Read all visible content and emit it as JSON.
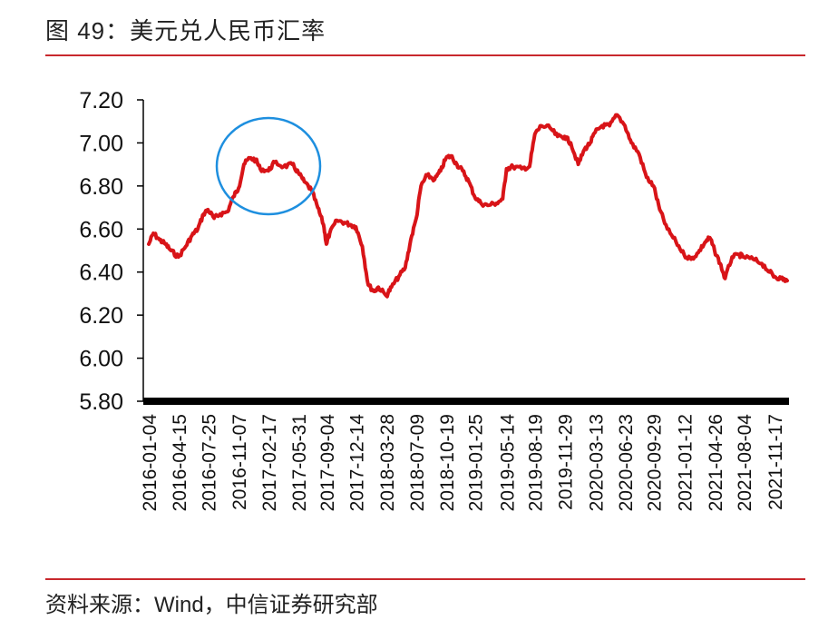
{
  "header": {
    "title": "图 49：美元兑人民币汇率"
  },
  "footer": {
    "source": "资料来源：Wind，中信证券研究部"
  },
  "colors": {
    "series": "#d81418",
    "rule": "#c8282d",
    "annotation": "#1e8fdf",
    "axis": "#000000"
  },
  "chart_data": {
    "type": "line",
    "title": "",
    "xlabel": "",
    "ylabel": "",
    "ylim": [
      5.8,
      7.2
    ],
    "yticks": [
      7.2,
      7.0,
      6.8,
      6.6,
      6.4,
      6.2,
      6.0,
      5.8
    ],
    "ytick_labels": [
      "7.20",
      "7.00",
      "6.80",
      "6.60",
      "6.40",
      "6.20",
      "6.00",
      "5.80"
    ],
    "xticks": [
      "2016-01-04",
      "2016-04-15",
      "2016-07-25",
      "2016-11-07",
      "2017-02-17",
      "2017-05-31",
      "2017-09-04",
      "2017-12-14",
      "2018-03-28",
      "2018-07-09",
      "2018-10-19",
      "2019-01-25",
      "2019-05-14",
      "2019-08-19",
      "2019-11-29",
      "2020-03-13",
      "2020-06-23",
      "2020-09-29",
      "2021-01-12",
      "2021-04-26",
      "2021-08-04",
      "2021-11-17"
    ],
    "grid": false,
    "legend": "none",
    "series": [
      {
        "points": [
          [
            "2016-01-04",
            6.53
          ],
          [
            "2016-01-20",
            6.58
          ],
          [
            "2016-02-10",
            6.55
          ],
          [
            "2016-03-01",
            6.53
          ],
          [
            "2016-03-20",
            6.5
          ],
          [
            "2016-04-15",
            6.47
          ],
          [
            "2016-05-10",
            6.52
          ],
          [
            "2016-05-31",
            6.57
          ],
          [
            "2016-06-20",
            6.6
          ],
          [
            "2016-07-10",
            6.67
          ],
          [
            "2016-07-25",
            6.69
          ],
          [
            "2016-08-15",
            6.65
          ],
          [
            "2016-09-05",
            6.67
          ],
          [
            "2016-09-30",
            6.68
          ],
          [
            "2016-10-20",
            6.75
          ],
          [
            "2016-11-07",
            6.79
          ],
          [
            "2016-11-25",
            6.9
          ],
          [
            "2016-12-15",
            6.93
          ],
          [
            "2017-01-05",
            6.92
          ],
          [
            "2017-01-20",
            6.88
          ],
          [
            "2017-02-17",
            6.87
          ],
          [
            "2017-03-10",
            6.91
          ],
          [
            "2017-04-10",
            6.89
          ],
          [
            "2017-05-10",
            6.9
          ],
          [
            "2017-05-31",
            6.86
          ],
          [
            "2017-06-20",
            6.82
          ],
          [
            "2017-07-15",
            6.78
          ],
          [
            "2017-08-05",
            6.7
          ],
          [
            "2017-08-25",
            6.62
          ],
          [
            "2017-09-04",
            6.53
          ],
          [
            "2017-09-15",
            6.58
          ],
          [
            "2017-10-10",
            6.64
          ],
          [
            "2017-11-05",
            6.63
          ],
          [
            "2017-11-25",
            6.62
          ],
          [
            "2017-12-14",
            6.61
          ],
          [
            "2018-01-05",
            6.52
          ],
          [
            "2018-01-25",
            6.34
          ],
          [
            "2018-02-15",
            6.31
          ],
          [
            "2018-03-01",
            6.33
          ],
          [
            "2018-03-28",
            6.29
          ],
          [
            "2018-04-15",
            6.33
          ],
          [
            "2018-05-10",
            6.38
          ],
          [
            "2018-06-01",
            6.42
          ],
          [
            "2018-06-20",
            6.55
          ],
          [
            "2018-07-09",
            6.65
          ],
          [
            "2018-07-25",
            6.8
          ],
          [
            "2018-08-15",
            6.85
          ],
          [
            "2018-09-10",
            6.83
          ],
          [
            "2018-09-30",
            6.87
          ],
          [
            "2018-10-19",
            6.93
          ],
          [
            "2018-11-05",
            6.94
          ],
          [
            "2018-11-25",
            6.9
          ],
          [
            "2018-12-15",
            6.87
          ],
          [
            "2019-01-05",
            6.82
          ],
          [
            "2019-01-25",
            6.75
          ],
          [
            "2019-02-15",
            6.72
          ],
          [
            "2019-03-10",
            6.71
          ],
          [
            "2019-04-10",
            6.72
          ],
          [
            "2019-05-01",
            6.74
          ],
          [
            "2019-05-14",
            6.88
          ],
          [
            "2019-06-05",
            6.89
          ],
          [
            "2019-07-05",
            6.88
          ],
          [
            "2019-08-01",
            6.89
          ],
          [
            "2019-08-19",
            7.04
          ],
          [
            "2019-09-10",
            7.08
          ],
          [
            "2019-10-10",
            7.07
          ],
          [
            "2019-11-05",
            7.03
          ],
          [
            "2019-11-29",
            7.03
          ],
          [
            "2019-12-20",
            7.0
          ],
          [
            "2020-01-15",
            6.9
          ],
          [
            "2020-02-05",
            6.97
          ],
          [
            "2020-02-25",
            7.0
          ],
          [
            "2020-03-13",
            7.05
          ],
          [
            "2020-04-05",
            7.08
          ],
          [
            "2020-05-01",
            7.08
          ],
          [
            "2020-05-27",
            7.13
          ],
          [
            "2020-06-23",
            7.08
          ],
          [
            "2020-07-15",
            7.0
          ],
          [
            "2020-08-10",
            6.95
          ],
          [
            "2020-09-05",
            6.84
          ],
          [
            "2020-09-29",
            6.8
          ],
          [
            "2020-10-20",
            6.69
          ],
          [
            "2020-11-15",
            6.6
          ],
          [
            "2020-12-15",
            6.54
          ],
          [
            "2021-01-12",
            6.48
          ],
          [
            "2021-02-05",
            6.46
          ],
          [
            "2021-03-01",
            6.49
          ],
          [
            "2021-03-25",
            6.54
          ],
          [
            "2021-04-10",
            6.56
          ],
          [
            "2021-04-26",
            6.5
          ],
          [
            "2021-05-15",
            6.44
          ],
          [
            "2021-06-01",
            6.37
          ],
          [
            "2021-06-25",
            6.47
          ],
          [
            "2021-07-20",
            6.48
          ],
          [
            "2021-08-04",
            6.47
          ],
          [
            "2021-09-05",
            6.46
          ],
          [
            "2021-10-05",
            6.44
          ],
          [
            "2021-11-01",
            6.4
          ],
          [
            "2021-11-17",
            6.38
          ],
          [
            "2021-12-10",
            6.37
          ],
          [
            "2021-12-31",
            6.36
          ]
        ]
      }
    ]
  }
}
